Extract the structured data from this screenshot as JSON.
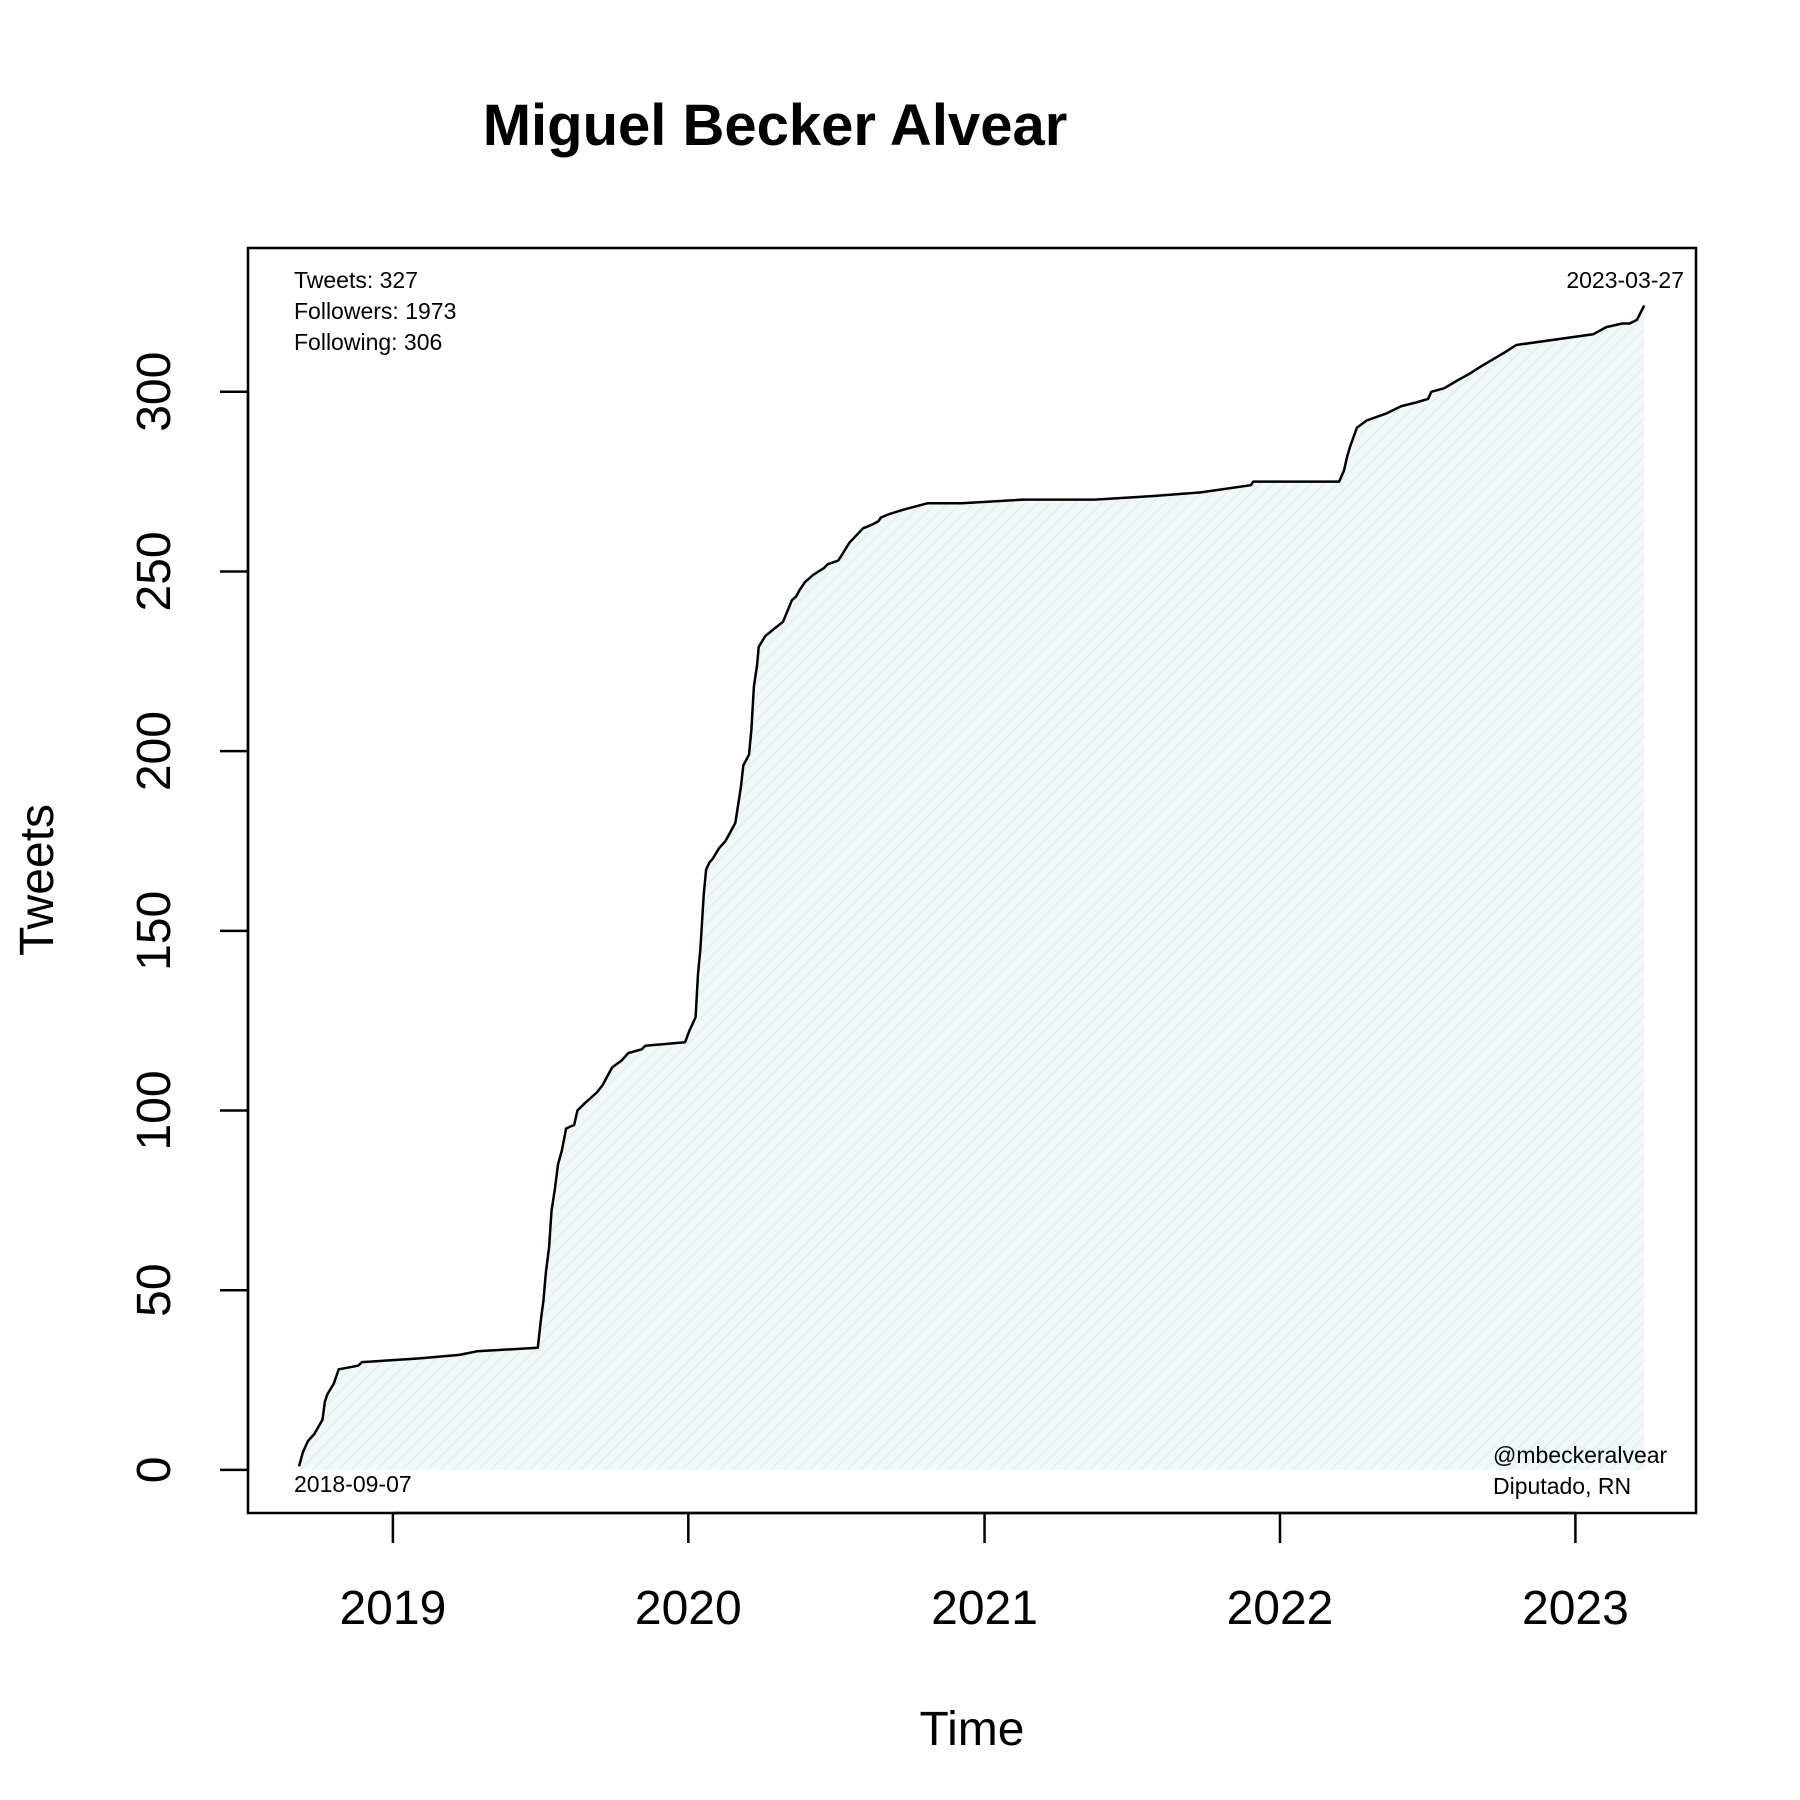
{
  "chart_data": {
    "type": "area",
    "title": "Miguel Becker Alvear",
    "xlabel": "Time",
    "ylabel": "Tweets",
    "x_ticks": [
      "2019",
      "2020",
      "2021",
      "2022",
      "2023"
    ],
    "y_ticks": [
      "0",
      "50",
      "100",
      "150",
      "200",
      "250",
      "300"
    ],
    "xlim": [
      "2018-07-06",
      "2023-05-30"
    ],
    "ylim": [
      -12,
      340
    ],
    "grid": false,
    "colors": {
      "line": "#000000",
      "fill": "#eaf4f6"
    },
    "stats": [
      "Tweets: 327",
      "Followers: 1973",
      "Following: 306"
    ],
    "start_label": "2018-09-07",
    "end_label": "2023-03-27",
    "handle": "@mbeckeralvear",
    "subtitle_right": "Diputado, RN",
    "series": [
      {
        "x": [
          "2018-09-07",
          "2018-09-12",
          "2018-09-18",
          "2018-09-26",
          "2018-10-06",
          "2018-10-09",
          "2018-10-12",
          "2018-10-20",
          "2018-10-26",
          "2018-11-19",
          "2018-11-24",
          "2019-02-01",
          "2019-03-24",
          "2019-04-15",
          "2019-06-29",
          "2019-07-03",
          "2019-07-06",
          "2019-07-09",
          "2019-07-13",
          "2019-07-16",
          "2019-07-20",
          "2019-07-24",
          "2019-07-29",
          "2019-08-03",
          "2019-08-13",
          "2019-08-17",
          "2019-08-26",
          "2019-09-10",
          "2019-09-17",
          "2019-09-24",
          "2019-09-29",
          "2019-10-11",
          "2019-10-19",
          "2019-11-04",
          "2019-11-09",
          "2019-12-28",
          "2020-01-02",
          "2020-01-10",
          "2020-01-13",
          "2020-01-16",
          "2020-01-20",
          "2020-01-23",
          "2020-01-27",
          "2020-01-31",
          "2020-02-08",
          "2020-02-16",
          "2020-02-28",
          "2020-03-06",
          "2020-03-09",
          "2020-03-16",
          "2020-03-19",
          "2020-03-22",
          "2020-03-26",
          "2020-03-28",
          "2020-04-05",
          "2020-04-16",
          "2020-04-27",
          "2020-05-08",
          "2020-05-13",
          "2020-05-18",
          "2020-05-24",
          "2020-06-03",
          "2020-06-17",
          "2020-06-21",
          "2020-07-04",
          "2020-07-07",
          "2020-07-18",
          "2020-08-04",
          "2020-08-15",
          "2020-08-23",
          "2020-08-26",
          "2020-09-06",
          "2020-09-20",
          "2020-10-06",
          "2020-10-23",
          "2020-11-04",
          "2020-11-24",
          "2020-12-04",
          "2021-02-18",
          "2021-05-17",
          "2021-07-29",
          "2021-09-25",
          "2021-11-26",
          "2021-11-29",
          "2022-03-15",
          "2022-03-21",
          "2022-03-25",
          "2022-03-29",
          "2022-04-06",
          "2022-04-18",
          "2022-05-13",
          "2022-05-31",
          "2022-06-18",
          "2022-07-03",
          "2022-07-07",
          "2022-07-23",
          "2022-08-07",
          "2022-08-23",
          "2022-09-06",
          "2022-09-21",
          "2022-10-06",
          "2022-10-20",
          "2023-01-23",
          "2023-02-08",
          "2023-02-28",
          "2023-03-09",
          "2023-03-18",
          "2023-03-27"
        ],
        "values": [
          1,
          5,
          8,
          10,
          14,
          19,
          21,
          24,
          28,
          29,
          30,
          31,
          32,
          33,
          34,
          42,
          47,
          55,
          62,
          72,
          78,
          85,
          89,
          95,
          96,
          100,
          102,
          105,
          107,
          110,
          112,
          114,
          116,
          117,
          118,
          119,
          122,
          126,
          138,
          145,
          160,
          167,
          169,
          170,
          173,
          175,
          180,
          190,
          196,
          199,
          206,
          218,
          224,
          229,
          232,
          234,
          236,
          242,
          243,
          245,
          247,
          249,
          251,
          252,
          253,
          254,
          258,
          262,
          263,
          264,
          265,
          266,
          267,
          268,
          269,
          269,
          269,
          269,
          270,
          270,
          271,
          272,
          274,
          275,
          275,
          278,
          282,
          285,
          290,
          292,
          294,
          296,
          297,
          298,
          300,
          301,
          303,
          305,
          307,
          309,
          311,
          313,
          316,
          318,
          319,
          319,
          320,
          324
        ]
      }
    ]
  }
}
